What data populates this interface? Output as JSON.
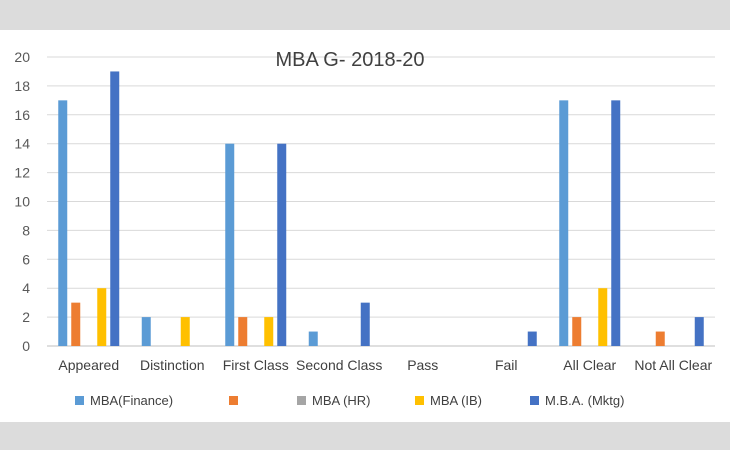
{
  "chart_data": {
    "type": "bar",
    "title": "MBA G- 2018-20",
    "categories": [
      "Appeared",
      "Distinction",
      "First Class",
      "Second Class",
      "Pass",
      "Fail",
      "All Clear",
      "Not All Clear"
    ],
    "ylim": [
      0,
      20
    ],
    "yticks": [
      0,
      2,
      4,
      6,
      8,
      10,
      12,
      14,
      16,
      18,
      20
    ],
    "grid": true,
    "legend_position": "bottom",
    "series": [
      {
        "name": "MBA(Finance)",
        "color": "#5b9bd5",
        "values": [
          17,
          2,
          14,
          1,
          0,
          0,
          17,
          0
        ]
      },
      {
        "name": "",
        "color": "#ed7d31",
        "values": [
          3,
          0,
          2,
          0,
          0,
          0,
          2,
          1
        ]
      },
      {
        "name": "MBA (HR)",
        "color": "#a5a5a5",
        "values": [
          0,
          0,
          0,
          0,
          0,
          0,
          0,
          0
        ]
      },
      {
        "name": "MBA (IB)",
        "color": "#ffc000",
        "values": [
          4,
          2,
          2,
          0,
          0,
          0,
          4,
          0
        ]
      },
      {
        "name": "M.B.A. (Mktg)",
        "color": "#4472c4",
        "values": [
          19,
          0,
          14,
          3,
          0,
          1,
          17,
          2
        ]
      }
    ]
  }
}
